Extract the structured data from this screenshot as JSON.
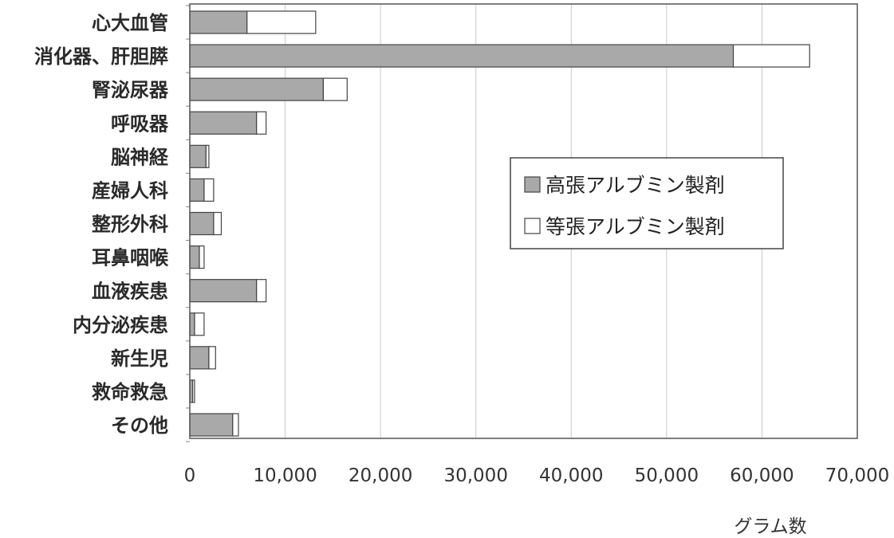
{
  "chart_data": {
    "type": "bar",
    "orientation": "horizontal",
    "stacked": true,
    "categories": [
      "心大血管",
      "消化器、肝胆膵",
      "腎泌尿器",
      "呼吸器",
      "脳神経",
      "産婦人科",
      "整形外科",
      "耳鼻咽喉",
      "血液疾患",
      "内分泌疾患",
      "新生児",
      "救命救急",
      "その他"
    ],
    "series": [
      {
        "name": "高張アルブミン製剤",
        "color": "#a9a9a9",
        "values": [
          6000,
          57000,
          14000,
          7000,
          1700,
          1500,
          2500,
          1000,
          7000,
          500,
          2000,
          300,
          4500
        ]
      },
      {
        "name": "等張アルブミン製剤",
        "color": "#ffffff",
        "values": [
          7200,
          8000,
          2500,
          1000,
          300,
          1000,
          800,
          500,
          1000,
          1000,
          700,
          200,
          600
        ]
      }
    ],
    "xlim": [
      0,
      70000
    ],
    "xticks": [
      "0",
      "10,000",
      "20,000",
      "30,000",
      "40,000",
      "50,000",
      "60,000",
      "70,000"
    ],
    "xlabel": "グラム数",
    "grid": "vertical",
    "legend_position": "inside-right"
  }
}
